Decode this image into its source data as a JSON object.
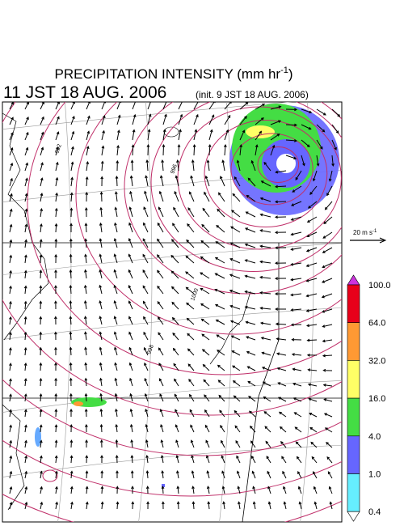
{
  "header": {
    "title": {
      "text": "PRECIPITATION INTENSITY (mm hr",
      "superscript": "-1",
      "suffix": ")"
    },
    "valid_time": "11 JST 18 AUG. 2006",
    "init_time": "(init. 9 JST 18 AUG. 2006)"
  },
  "reference_vector": {
    "text": "20 m s",
    "superscript": "-1"
  },
  "contour_labels": [
    "992",
    "996",
    "1000",
    "998"
  ],
  "colorbar": {
    "over_color": "#cc33dd",
    "under_color": "#ffffff",
    "levels": [
      {
        "label": "100.0",
        "color": "#e8001a"
      },
      {
        "label": "64.0",
        "color": "#ff9933"
      },
      {
        "label": "32.0",
        "color": "#ffff66"
      },
      {
        "label": "16.0",
        "color": "#44dd44"
      },
      {
        "label": "4.0",
        "color": "#6666ff"
      },
      {
        "label": "1.0",
        "color": "#66eeff"
      },
      {
        "label": "0.4",
        "color": null
      }
    ]
  }
}
